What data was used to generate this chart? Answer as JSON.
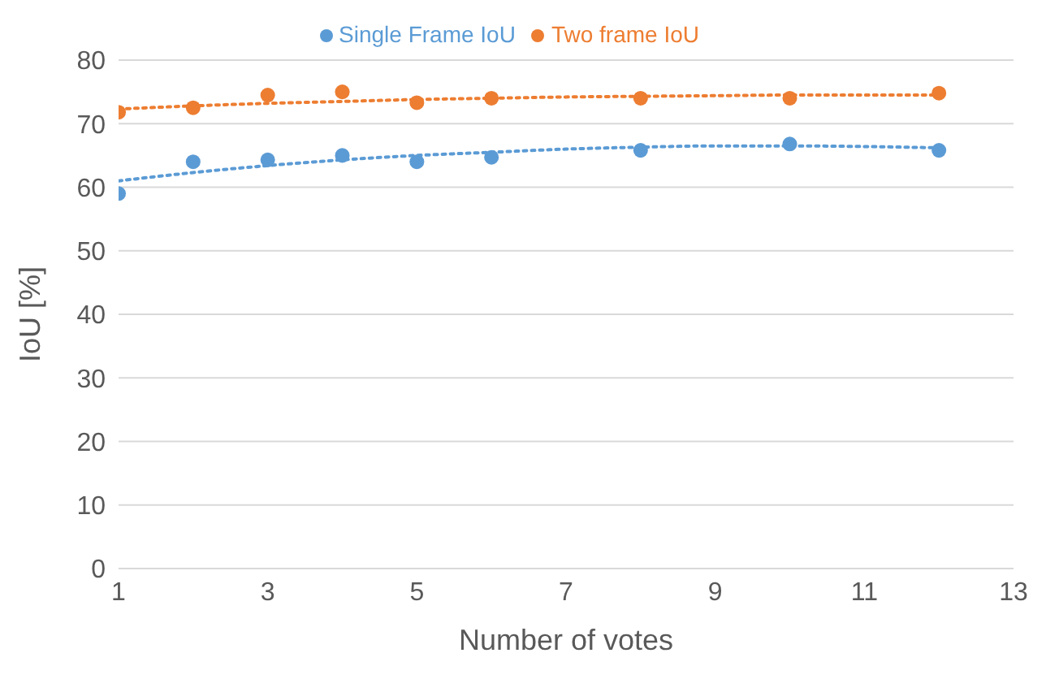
{
  "chart_data": {
    "type": "scatter",
    "xlabel": "Number of votes",
    "ylabel": "IoU [%]",
    "xlim": [
      1,
      13
    ],
    "xticks": [
      1,
      3,
      5,
      7,
      9,
      11,
      13
    ],
    "ylim": [
      0,
      80
    ],
    "yticks": [
      0,
      10,
      20,
      30,
      40,
      50,
      60,
      70,
      80
    ],
    "grid": "y",
    "legend": "top",
    "marker": "circle",
    "series": [
      {
        "name": "Single Frame IoU",
        "color": "#5b9bd5",
        "x": [
          1,
          2,
          3,
          4,
          5,
          6,
          8,
          10,
          12
        ],
        "values": [
          59,
          64,
          64.3,
          65,
          64,
          64.7,
          65.8,
          66.8,
          65.8
        ]
      },
      {
        "name": "Two frame IoU",
        "color": "#ed7d31",
        "x": [
          1,
          2,
          3,
          4,
          5,
          6,
          8,
          10,
          12
        ],
        "values": [
          71.8,
          72.5,
          74.5,
          75,
          73.3,
          74,
          74,
          74,
          74.8
        ]
      },
      {
        "type": "line",
        "line_style": "dotted",
        "marker": "none",
        "color": "#5b9bd5",
        "x": [
          1,
          2,
          3,
          4,
          5,
          6,
          7,
          8,
          9,
          10,
          11,
          12
        ],
        "values": [
          61,
          62.3,
          63.4,
          64.3,
          65,
          65.5,
          66,
          66.3,
          66.5,
          66.5,
          66.4,
          66.2
        ]
      },
      {
        "type": "line",
        "line_style": "dotted",
        "marker": "none",
        "color": "#ed7d31",
        "x": [
          1,
          2,
          3,
          4,
          5,
          6,
          7,
          8,
          9,
          10,
          11,
          12
        ],
        "values": [
          72.3,
          72.8,
          73.2,
          73.5,
          73.8,
          74,
          74.2,
          74.3,
          74.4,
          74.5,
          74.5,
          74.5
        ]
      }
    ]
  }
}
